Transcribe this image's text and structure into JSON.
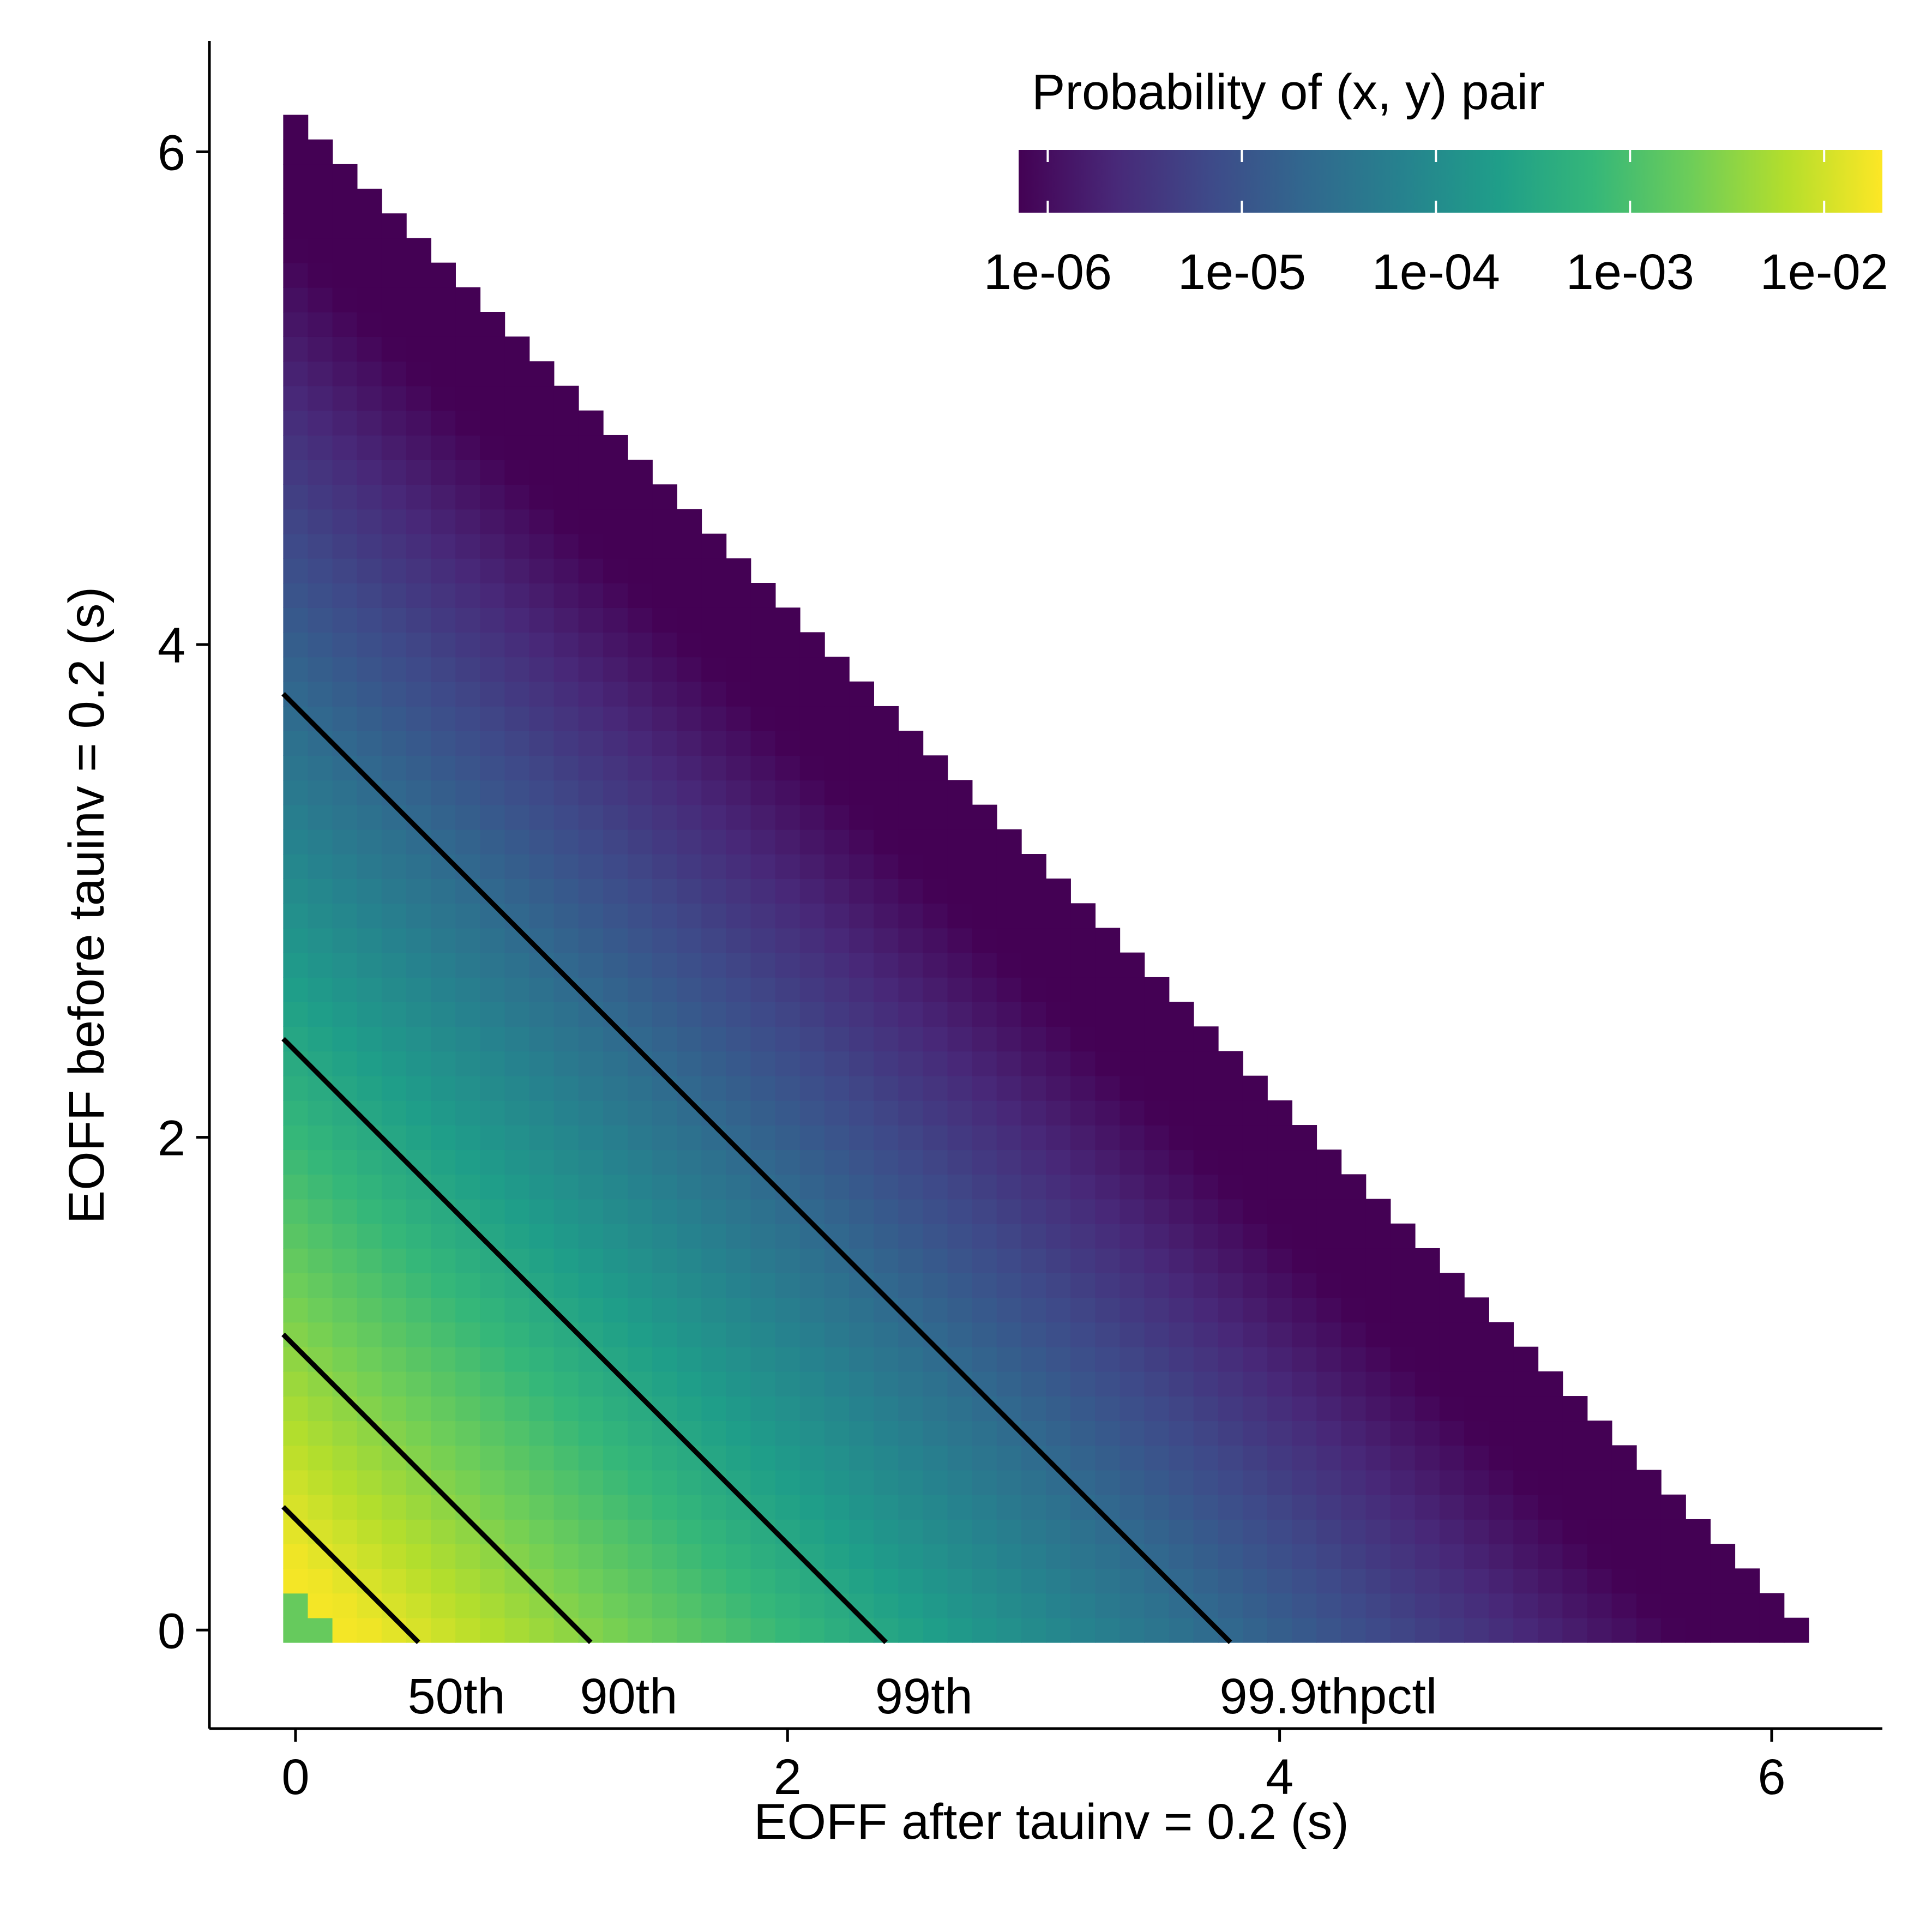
{
  "chart_data": {
    "type": "heatmap",
    "title": "",
    "xlabel": "EOFF after tauinv = 0.2 (s)",
    "ylabel": "EOFF before tauinv = 0.2 (s)",
    "xlim": [
      -0.35,
      6.45
    ],
    "ylim": [
      -0.4,
      6.45
    ],
    "xticks": [
      0,
      2,
      4,
      6
    ],
    "yticks": [
      0,
      2,
      4,
      6
    ],
    "grid": false,
    "cell_step": 0.1,
    "support_max_sum": 6.1,
    "density_model": "log10 probability = -1.55 - 0.82 * (x + y)",
    "colorbar": {
      "title": "Probability of (x, y) pair",
      "scale": "log10",
      "range_log10": [
        -6.15,
        -1.7
      ],
      "ticks_log10": [
        -6,
        -5,
        -4,
        -3,
        -2
      ],
      "tick_labels": [
        "1e-06",
        "1e-05",
        "1e-04",
        "1e-03",
        "1e-02"
      ],
      "palette": [
        "#440154",
        "#482878",
        "#3E4A89",
        "#31688E",
        "#26828E",
        "#1F9E89",
        "#35B779",
        "#6DCD59",
        "#B4DE2C",
        "#FDE725"
      ],
      "placement": "top-right"
    },
    "contours": [
      {
        "label": "50th",
        "sum": 0.45
      },
      {
        "label": "90th",
        "sum": 1.15
      },
      {
        "label": "99th",
        "sum": 2.35
      },
      {
        "label": "99.9thpctl",
        "sum": 3.75
      }
    ]
  }
}
